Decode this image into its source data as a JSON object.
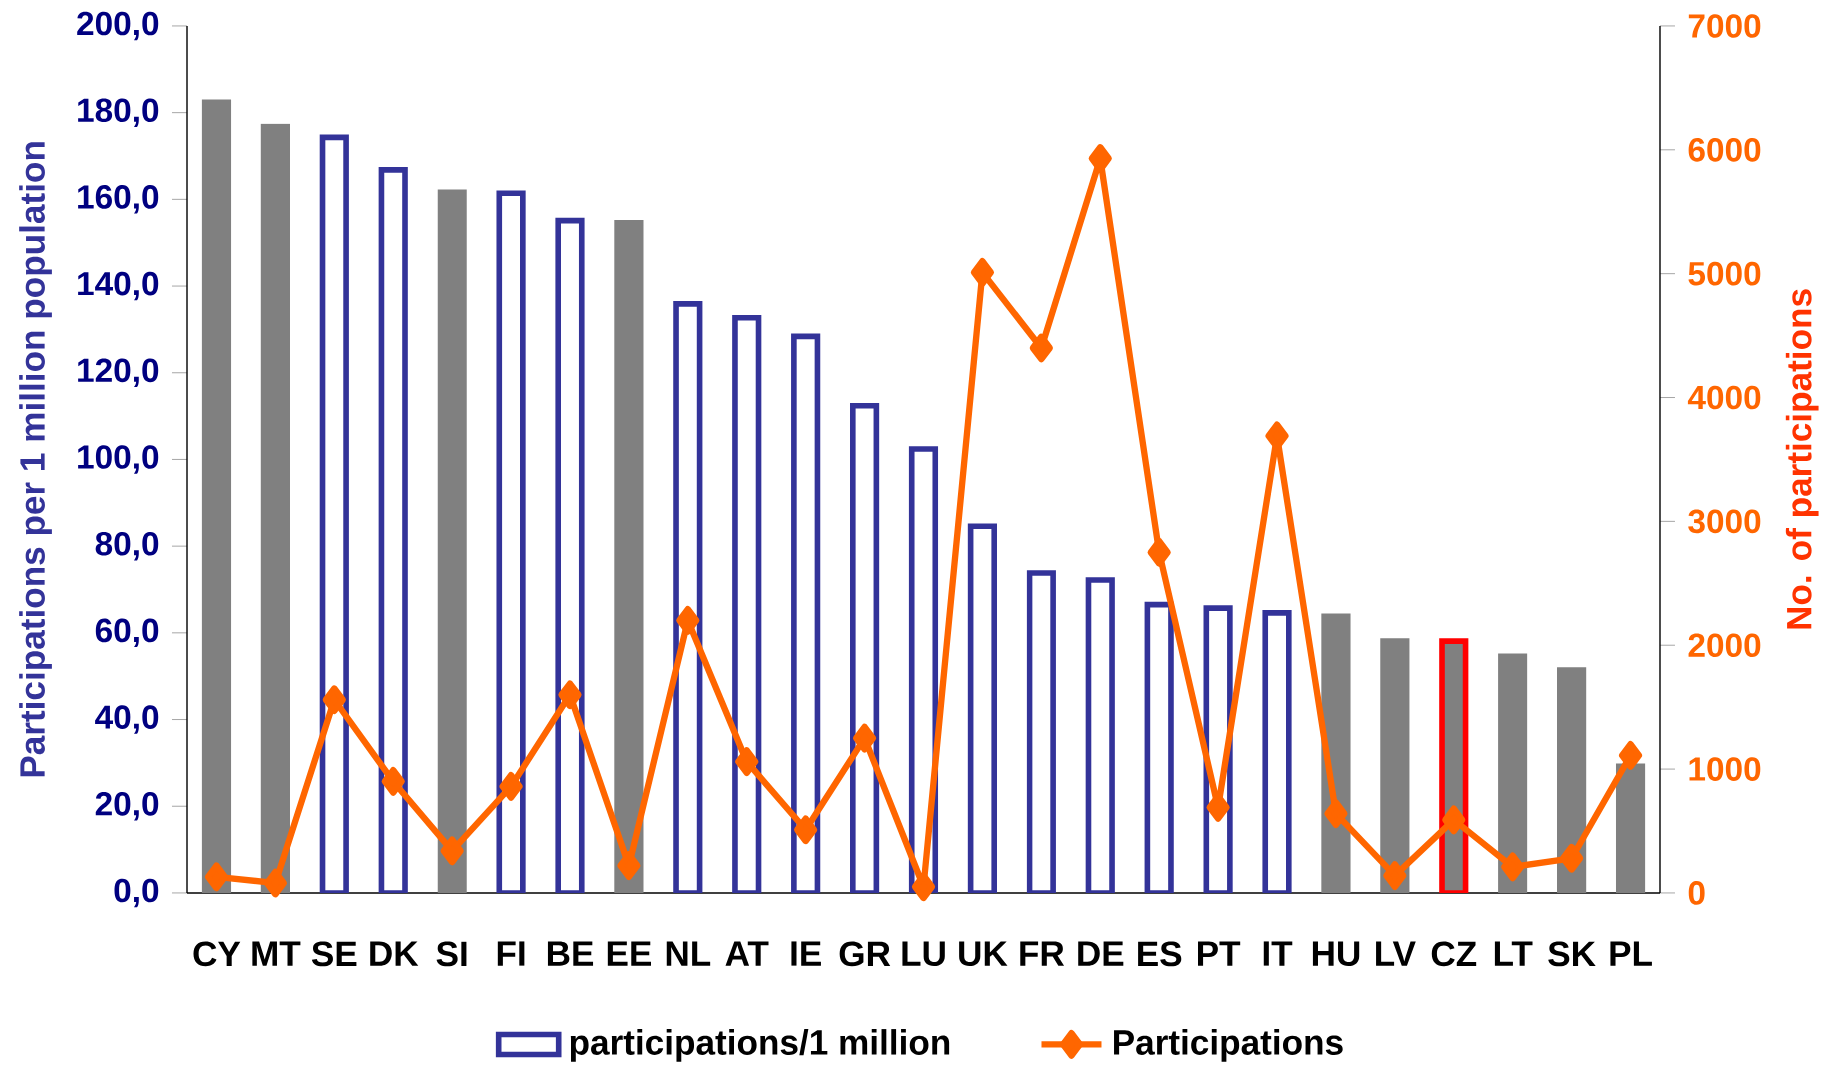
{
  "chart_data": {
    "type": "bar",
    "categories": [
      "CY",
      "MT",
      "SE",
      "DK",
      "SI",
      "FI",
      "BE",
      "EE",
      "NL",
      "AT",
      "IE",
      "GR",
      "LU",
      "UK",
      "FR",
      "DE",
      "ES",
      "PT",
      "IT",
      "HU",
      "LV",
      "CZ",
      "LT",
      "SK",
      "PL"
    ],
    "ylabel": "Participations per 1 million population",
    "y2label": "No. of participations",
    "ylim": [
      0,
      200
    ],
    "yticks": [
      {
        "value": 0,
        "label": "0,0"
      },
      {
        "value": 20,
        "label": "20,0"
      },
      {
        "value": 40,
        "label": "40,0"
      },
      {
        "value": 60,
        "label": "60,0"
      },
      {
        "value": 80,
        "label": "80,0"
      },
      {
        "value": 100,
        "label": "100,0"
      },
      {
        "value": 120,
        "label": "120,0"
      },
      {
        "value": 140,
        "label": "140,0"
      },
      {
        "value": 160,
        "label": "160,0"
      },
      {
        "value": 180,
        "label": "180,0"
      },
      {
        "value": 200,
        "label": "200,0"
      }
    ],
    "y2lim": [
      0,
      7000
    ],
    "y2ticks": [
      0,
      1000,
      2000,
      3000,
      4000,
      5000,
      6000,
      7000
    ],
    "grid": false,
    "legend": "bottom",
    "series": [
      {
        "name": "participations/1 million",
        "color": "#333399",
        "values": [
          null,
          null,
          174.3,
          166.8,
          null,
          161.4,
          155.1,
          null,
          135.9,
          132.7,
          128.4,
          112.4,
          102.4,
          84.6,
          73.8,
          72.2,
          66.5,
          65.7,
          64.6,
          null,
          null,
          null,
          null,
          null,
          null
        ]
      },
      {
        "color": "#808080",
        "colors": [
          "#808080",
          "#808080",
          null,
          null,
          "#808080",
          null,
          null,
          "#808080",
          null,
          null,
          null,
          null,
          null,
          null,
          null,
          null,
          null,
          null,
          null,
          "#808080",
          "#808080",
          "#ff0000",
          "#808080",
          "#808080",
          "#808080"
        ],
        "values": [
          182.4,
          176.8,
          null,
          null,
          161.6,
          null,
          null,
          154.6,
          null,
          null,
          null,
          null,
          null,
          null,
          null,
          null,
          null,
          null,
          null,
          63.8,
          58.1,
          58.1,
          54.6,
          51.4,
          29.2
        ]
      },
      {
        "name": "Participations",
        "type": "line",
        "axis": "y2",
        "color": "#ff6600",
        "marker": "diamond",
        "line_style": "solid",
        "values": [
          130,
          80,
          1560,
          900,
          340,
          860,
          1600,
          220,
          2200,
          1060,
          510,
          1250,
          50,
          5010,
          4400,
          5930,
          2750,
          690,
          3690,
          640,
          140,
          590,
          210,
          280,
          1110
        ]
      }
    ]
  }
}
